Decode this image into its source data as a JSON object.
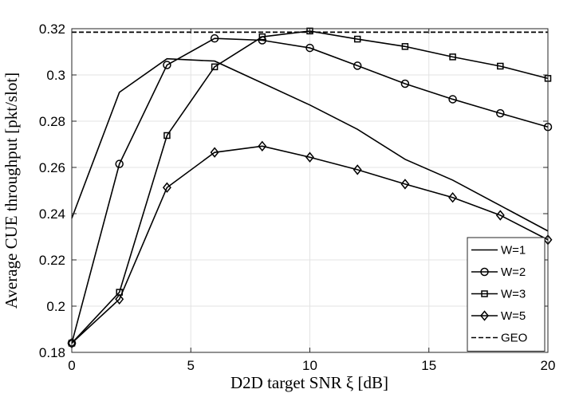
{
  "chart_data": {
    "type": "line",
    "title": "",
    "xlabel": "D2D target SNR ξ [dB]",
    "ylabel": "Average CUE throughput [pkt/slot]",
    "xlim": [
      0,
      20
    ],
    "ylim": [
      0.18,
      0.32
    ],
    "xticks": [
      0,
      5,
      10,
      15,
      20
    ],
    "xtick_labels": [
      "0",
      "5",
      "10",
      "15",
      "20"
    ],
    "yticks": [
      0.18,
      0.2,
      0.22,
      0.24,
      0.26,
      0.28,
      0.3,
      0.32
    ],
    "ytick_labels": [
      "0.18",
      "0.2",
      "0.22",
      "0.24",
      "0.26",
      "0.28",
      "0.3",
      "0.32"
    ],
    "grid": true,
    "legend_position": "bottom-right",
    "series": [
      {
        "name": "W=1",
        "marker": "none",
        "dash": "solid",
        "x": [
          0,
          2,
          4,
          6,
          8,
          10,
          12,
          14,
          16,
          18,
          20
        ],
        "values": [
          0.238,
          0.2925,
          0.307,
          0.306,
          0.2965,
          0.287,
          0.2765,
          0.2635,
          0.2545,
          0.2435,
          0.2325
        ]
      },
      {
        "name": "W=2",
        "marker": "circle",
        "dash": "solid",
        "x": [
          0,
          2,
          4,
          6,
          8,
          10,
          12,
          14,
          16,
          18,
          20
        ],
        "values": [
          0.184,
          0.2615,
          0.3043,
          0.3158,
          0.315,
          0.3117,
          0.304,
          0.2962,
          0.2895,
          0.2834,
          0.2775
        ]
      },
      {
        "name": "W=3",
        "marker": "square",
        "dash": "solid",
        "x": [
          0,
          2,
          4,
          6,
          8,
          10,
          12,
          14,
          16,
          18,
          20
        ],
        "values": [
          0.184,
          0.206,
          0.2738,
          0.3035,
          0.3165,
          0.319,
          0.3155,
          0.3123,
          0.3078,
          0.3038,
          0.2985
        ]
      },
      {
        "name": "W=5",
        "marker": "diamond",
        "dash": "solid",
        "x": [
          0,
          2,
          4,
          6,
          8,
          10,
          12,
          14,
          16,
          18,
          20
        ],
        "values": [
          0.184,
          0.203,
          0.2513,
          0.2665,
          0.2692,
          0.2644,
          0.259,
          0.2528,
          0.247,
          0.2393,
          0.2287
        ]
      },
      {
        "name": "GEO",
        "marker": "none",
        "dash": "dashed",
        "x": [
          0,
          20
        ],
        "values": [
          0.3185,
          0.3185
        ]
      }
    ]
  }
}
